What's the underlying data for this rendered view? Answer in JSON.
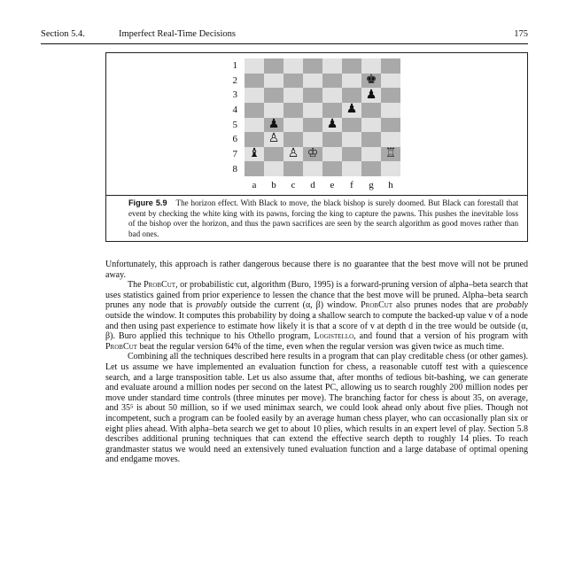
{
  "header": {
    "section": "Section 5.4.",
    "title": "Imperfect Real-Time Decisions",
    "page": "175"
  },
  "figure": {
    "row_labels": [
      "1",
      "2",
      "3",
      "4",
      "5",
      "6",
      "7",
      "8"
    ],
    "col_labels": [
      "a",
      "b",
      "c",
      "d",
      "e",
      "f",
      "g",
      "h"
    ],
    "board": [
      [
        "",
        "",
        "",
        "",
        "",
        "",
        "",
        ""
      ],
      [
        "",
        "",
        "",
        "",
        "",
        "",
        "♚",
        ""
      ],
      [
        "",
        "",
        "",
        "",
        "",
        "",
        "♟",
        ""
      ],
      [
        "",
        "",
        "",
        "",
        "",
        "♟",
        "",
        ""
      ],
      [
        "",
        "♟",
        "",
        "",
        "♟",
        "",
        "",
        ""
      ],
      [
        "",
        "♙",
        "",
        "",
        "",
        "",
        "",
        ""
      ],
      [
        "♝",
        "",
        "♙",
        "♔",
        "",
        "",
        "",
        "♖"
      ],
      [
        "",
        "",
        "",
        "",
        "",
        "",
        "",
        ""
      ]
    ],
    "caption_label": "Figure 5.9",
    "caption_text": "The horizon effect. With Black to move, the black bishop is surely doomed. But Black can forestall that event by checking the white king with its pawns, forcing the king to capture the pawns. This pushes the inevitable loss of the bishop over the horizon, and thus the pawn sacrifices are seen by the search algorithm as good moves rather than bad ones."
  },
  "body": {
    "p1": "Unfortunately, this approach is rather dangerous because there is no guarantee that the best move will not be pruned away.",
    "p2_a": "The ",
    "probcut1": "ProbCut",
    "p2_b": ", or probabilistic cut, algorithm (Buro, 1995) is a forward-pruning version of alpha–beta search that uses statistics gained from prior experience to lessen the chance that the best move will be pruned. Alpha–beta search prunes any node that is ",
    "provably": "provably",
    "p2_c": " outside the current (α, β) window. ",
    "probcut2": "ProbCut",
    "p2_d": " also prunes nodes that are ",
    "probably": "probably",
    "p2_e": " outside the window. It computes this probability by doing a shallow search to compute the backed-up value v of a node and then using past experience to estimate how likely it is that a score of v at depth d in the tree would be outside (α, β). Buro applied this technique to his Othello program, ",
    "logistello": "Logistello",
    "p2_f": ", and found that a version of his program with ",
    "probcut3": "ProbCut",
    "p2_g": " beat the regular version 64% of the time, even when the regular version was given twice as much time.",
    "p3": "Combining all the techniques described here results in a program that can play creditable chess (or other games). Let us assume we have implemented an evaluation function for chess, a reasonable cutoff test with a quiescence search, and a large transposition table. Let us also assume that, after months of tedious bit-bashing, we can generate and evaluate around a million nodes per second on the latest PC, allowing us to search roughly 200 million nodes per move under standard time controls (three minutes per move). The branching factor for chess is about 35, on average, and 35⁵ is about 50 million, so if we used minimax search, we could look ahead only about five plies. Though not incompetent, such a program can be fooled easily by an average human chess player, who can occasionally plan six or eight plies ahead. With alpha–beta search we get to about 10 plies, which results in an expert level of play. Section 5.8 describes additional pruning techniques that can extend the effective search depth to roughly 14 plies. To reach grandmaster status we would need an extensively tuned evaluation function and a large database of optimal opening and endgame moves."
  }
}
